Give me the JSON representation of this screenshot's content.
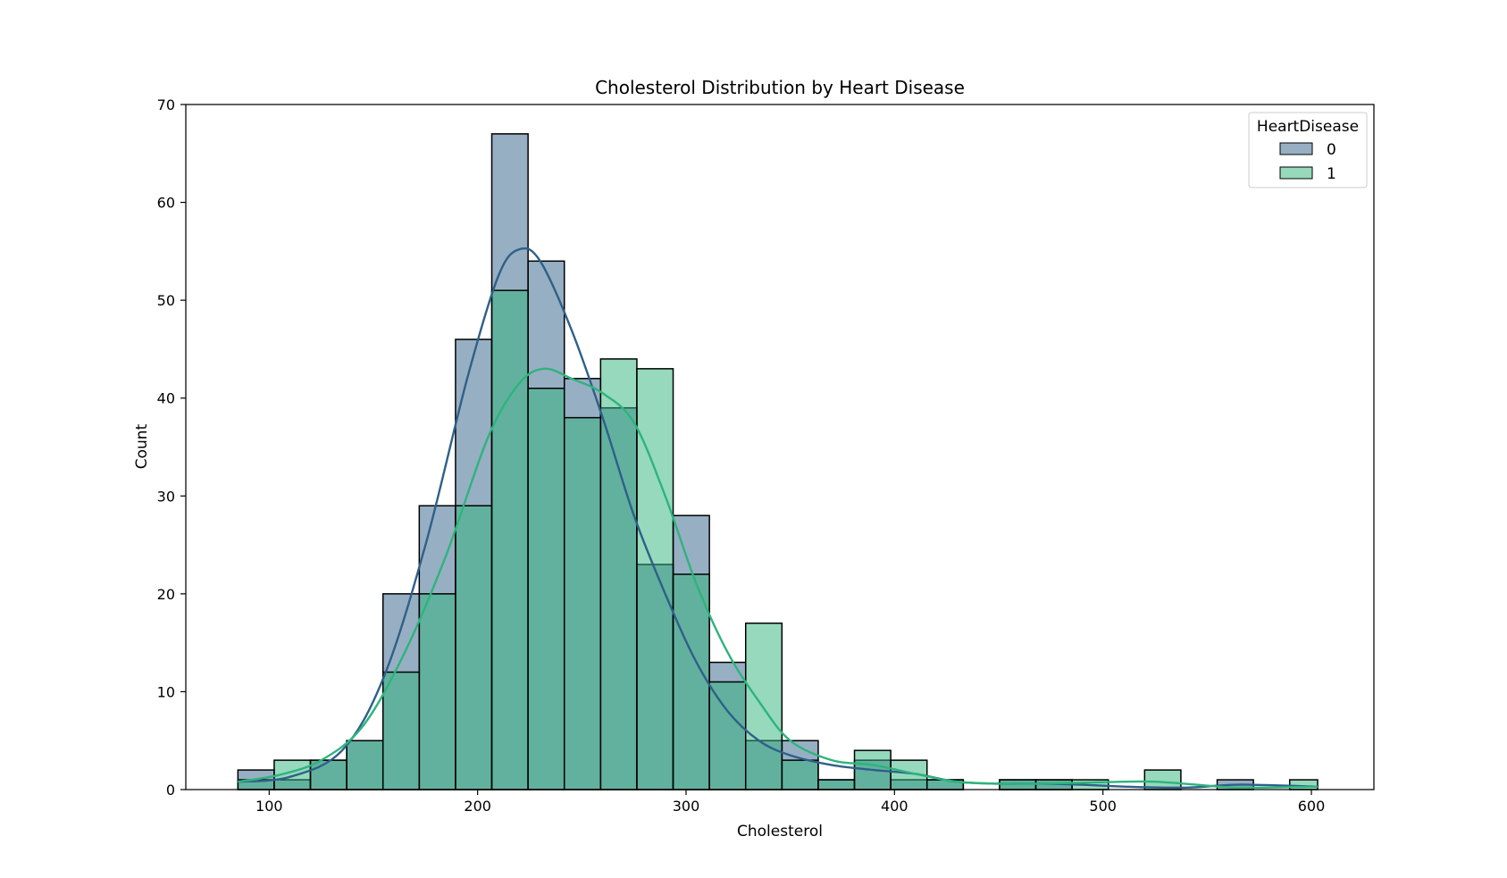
{
  "chart_data": {
    "type": "histogram",
    "title": "Cholesterol Distribution by Heart Disease",
    "xlabel": "Cholesterol",
    "ylabel": "Count",
    "xlim": [
      60,
      630
    ],
    "ylim": [
      0,
      70
    ],
    "xticks": [
      100,
      200,
      300,
      400,
      500,
      600
    ],
    "yticks": [
      0,
      10,
      20,
      30,
      40,
      50,
      60,
      70
    ],
    "grid": false,
    "legend": {
      "title": "HeartDisease",
      "placement": "top-right"
    },
    "colors": {
      "0": "#2f6088",
      "1": "#2db47c",
      "overlap": "#62a1a5"
    },
    "bins": [
      85,
      102.4,
      119.8,
      137.2,
      154.6,
      172,
      189.4,
      206.8,
      224.2,
      241.6,
      259,
      276.4,
      293.8,
      311.2,
      328.6,
      346,
      363.4,
      380.8,
      398.2,
      415.6,
      433,
      450.4,
      467.8,
      485.2,
      502.6,
      520,
      537.4,
      554.8,
      572.2,
      589.6,
      603
    ],
    "series": [
      {
        "name": "0",
        "counts": [
          2,
          1,
          3,
          5,
          20,
          29,
          46,
          67,
          54,
          42,
          39,
          23,
          28,
          13,
          5,
          5,
          1,
          3,
          1,
          1,
          0,
          1,
          1,
          0,
          0,
          0,
          0,
          1,
          0,
          0
        ],
        "kde": [
          [
            85,
            0.8
          ],
          [
            110,
            1.3
          ],
          [
            135,
            4
          ],
          [
            155,
            11.5
          ],
          [
            175,
            25
          ],
          [
            195,
            42
          ],
          [
            210,
            52.5
          ],
          [
            220,
            55.2
          ],
          [
            230,
            54
          ],
          [
            245,
            47
          ],
          [
            260,
            38
          ],
          [
            275,
            28
          ],
          [
            290,
            20
          ],
          [
            305,
            13
          ],
          [
            320,
            8
          ],
          [
            335,
            5
          ],
          [
            350,
            3.5
          ],
          [
            370,
            2.5
          ],
          [
            390,
            2
          ],
          [
            410,
            1.6
          ],
          [
            430,
            0.8
          ],
          [
            450,
            0.6
          ],
          [
            470,
            0.6
          ],
          [
            490,
            0.5
          ],
          [
            510,
            0.3
          ],
          [
            540,
            0.2
          ],
          [
            565,
            0.5
          ],
          [
            603,
            0.3
          ]
        ]
      },
      {
        "name": "1",
        "counts": [
          1,
          3,
          3,
          5,
          12,
          20,
          29,
          51,
          41,
          38,
          44,
          43,
          22,
          11,
          17,
          3,
          1,
          4,
          3,
          1,
          0,
          1,
          1,
          1,
          0,
          2,
          0,
          0,
          0,
          1
        ],
        "kde": [
          [
            85,
            0.8
          ],
          [
            105,
            1.5
          ],
          [
            125,
            3
          ],
          [
            145,
            6.5
          ],
          [
            165,
            14
          ],
          [
            185,
            24
          ],
          [
            205,
            36
          ],
          [
            220,
            41.5
          ],
          [
            232,
            43
          ],
          [
            245,
            42
          ],
          [
            260,
            40.5
          ],
          [
            275,
            37.5
          ],
          [
            290,
            30
          ],
          [
            305,
            21
          ],
          [
            320,
            14
          ],
          [
            335,
            9
          ],
          [
            350,
            5
          ],
          [
            370,
            3
          ],
          [
            390,
            2.5
          ],
          [
            410,
            1.6
          ],
          [
            430,
            0.8
          ],
          [
            450,
            0.6
          ],
          [
            470,
            0.6
          ],
          [
            490,
            0.7
          ],
          [
            510,
            0.8
          ],
          [
            525,
            0.8
          ],
          [
            545,
            0.5
          ],
          [
            565,
            0.2
          ],
          [
            603,
            0.3
          ]
        ]
      }
    ]
  }
}
